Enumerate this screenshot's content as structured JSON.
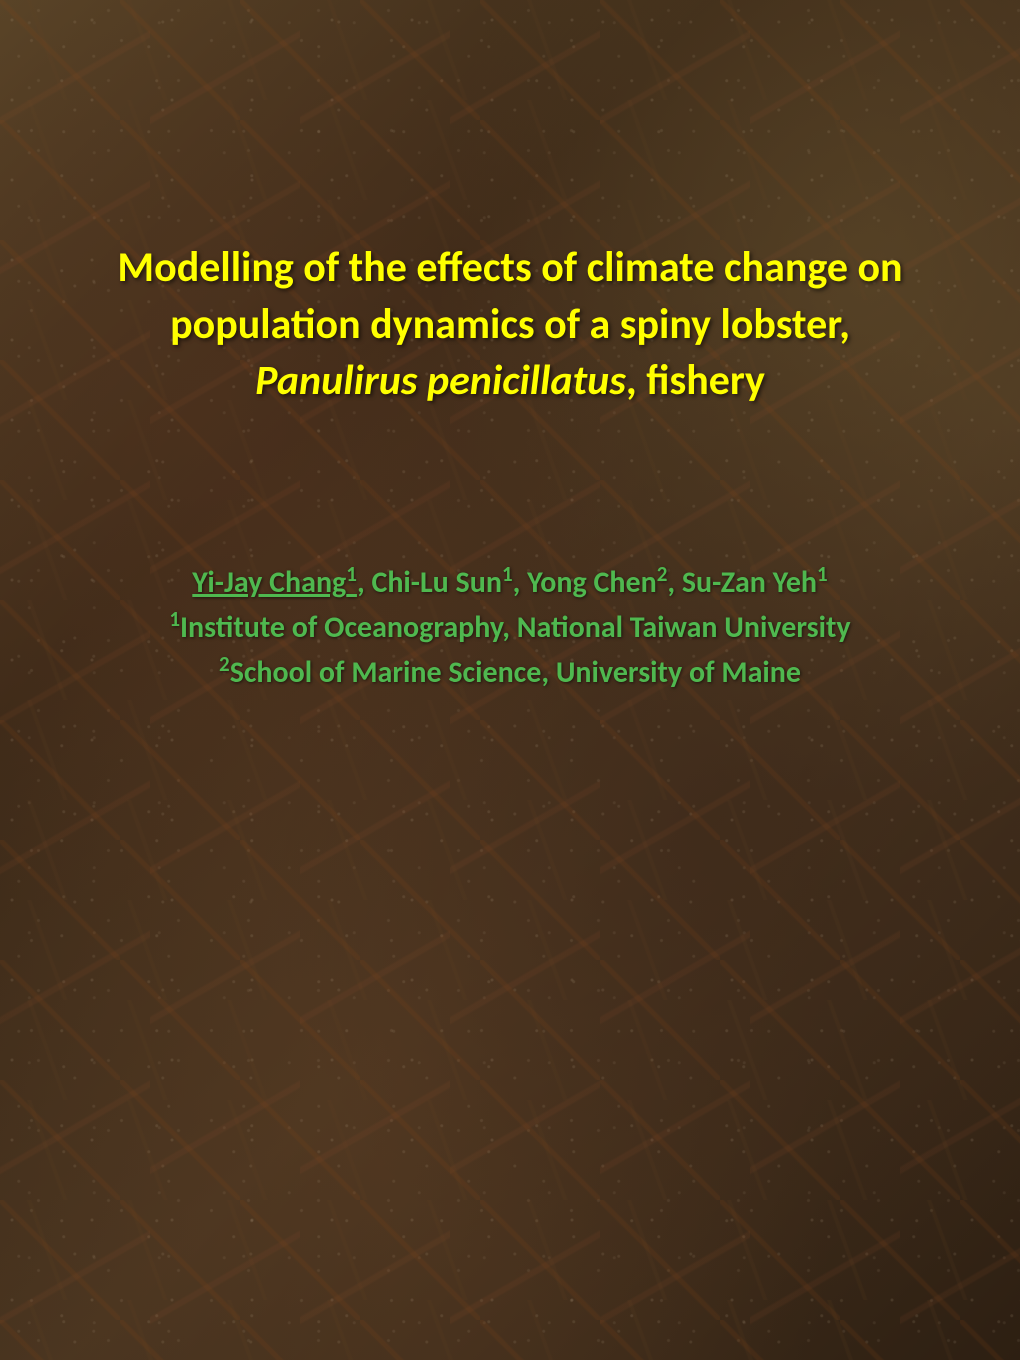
{
  "slide": {
    "title": {
      "line1": "Modelling of the effects of climate change on",
      "line2": "population dynamics of a spiny lobster,",
      "line3_italic": "Panulirus penicillatus",
      "line3_rest": ", fishery",
      "color": "#ffff00",
      "fontsize": 42
    },
    "authors": {
      "presenter": "Yi-Jay Chang",
      "presenter_sup": "1",
      "author2": ", Chi-Lu Sun",
      "author2_sup": "1",
      "author3": ", Yong Chen",
      "author3_sup": "2",
      "author4": ", Su-Zan Yeh",
      "author4_sup": "1",
      "affiliation1_sup": "1",
      "affiliation1": "Institute of Oceanography, National Taiwan University",
      "affiliation2_sup": "2",
      "affiliation2": "School of Marine Science, University of Maine",
      "color": "#4fb84f",
      "fontsize": 30
    },
    "background": {
      "dominant_colors": [
        "#5a4528",
        "#3d2a18",
        "#4a3520",
        "#2d1f12"
      ]
    }
  }
}
